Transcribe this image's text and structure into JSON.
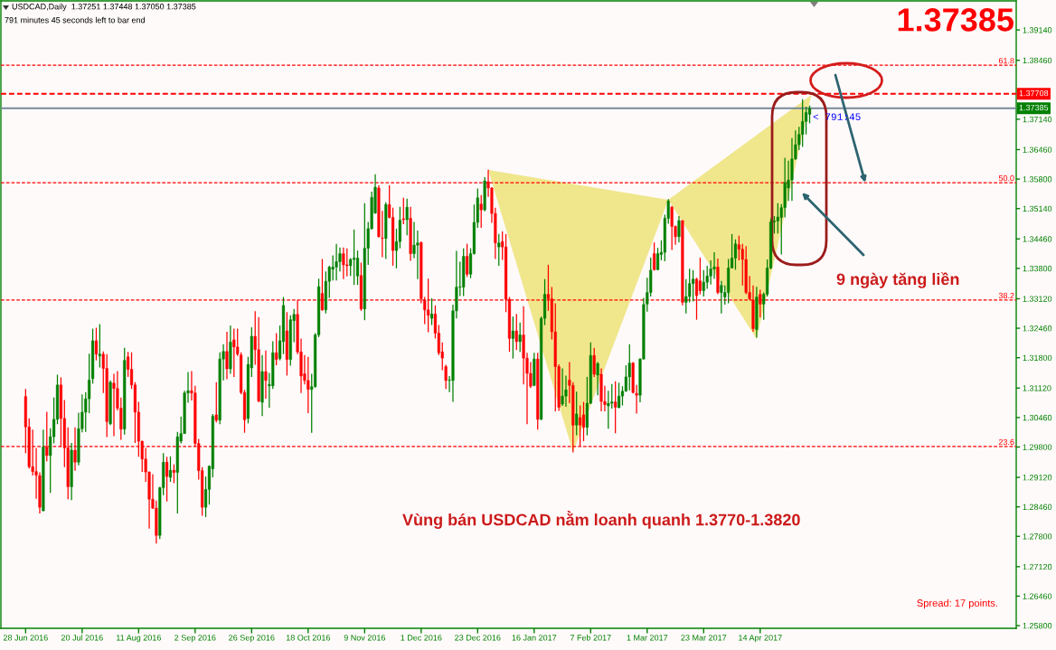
{
  "chart_data": {
    "type": "candlestick",
    "title": "USDCAD,Daily  1.37251 1.37448 1.37050 1.37385",
    "subtitle": "791 minutes 45 seconds left to bar end",
    "annotations": [
      "1.37385",
      "< 791:45",
      "9 ngày tăng liền",
      "Vùng bán USDCAD nằm loanh quanh 1.3770-1.3820",
      "Spread: 17 points.",
      {
        "text": "61.8",
        "y": 1.3835
      },
      {
        "text": "50.0",
        "y": 1.3572
      },
      {
        "text": "38.2",
        "y": 1.3309
      },
      {
        "text": "23.6",
        "y": 1.2981
      }
    ],
    "categories": [
      "28 Jun 2016",
      null,
      null,
      null,
      null,
      null,
      null,
      null,
      null,
      null,
      null,
      null,
      null,
      null,
      null,
      null,
      "20 Jul 2016",
      null,
      null,
      null,
      null,
      null,
      null,
      null,
      null,
      null,
      null,
      null,
      null,
      null,
      null,
      null,
      "11 Aug 2016",
      null,
      null,
      null,
      null,
      null,
      null,
      null,
      null,
      null,
      null,
      null,
      null,
      null,
      null,
      null,
      "2 Sep 2016",
      null,
      null,
      null,
      null,
      null,
      null,
      null,
      null,
      null,
      null,
      null,
      null,
      null,
      null,
      null,
      "26 Sep 2016",
      null,
      null,
      null,
      null,
      null,
      null,
      null,
      null,
      null,
      null,
      null,
      null,
      null,
      null,
      null,
      "18 Oct 2016",
      null,
      null,
      null,
      null,
      null,
      null,
      null,
      null,
      null,
      null,
      null,
      null,
      null,
      null,
      null,
      "9 Nov 2016",
      null,
      null,
      null,
      null,
      null,
      null,
      null,
      null,
      null,
      null,
      null,
      null,
      null,
      null,
      null,
      "1 Dec 2016",
      null,
      null,
      null,
      null,
      null,
      null,
      null,
      null,
      null,
      null,
      null,
      null,
      null,
      null,
      null,
      "23 Dec 2016",
      null,
      null,
      null,
      null,
      null,
      null,
      null,
      null,
      null,
      null,
      null,
      null,
      null,
      null,
      null,
      "16 Jan 2017",
      null,
      null,
      null,
      null,
      null,
      null,
      null,
      null,
      null,
      null,
      null,
      null,
      null,
      null,
      null,
      "7 Feb 2017",
      null,
      null,
      null,
      null,
      null,
      null,
      null,
      null,
      null,
      null,
      null,
      null,
      null,
      null,
      null,
      "1 Mar 2017",
      null,
      null,
      null,
      null,
      null,
      null,
      null,
      null,
      null,
      null,
      null,
      null,
      null,
      null,
      null,
      "23 Mar 2017",
      null,
      null,
      null,
      null,
      null,
      null,
      null,
      null,
      null,
      null,
      null,
      null,
      null,
      null,
      null,
      "14 Apr 2017",
      null,
      null,
      null,
      null,
      null,
      null,
      null,
      null,
      null,
      null,
      null,
      null,
      null,
      null,
      null,
      null,
      null,
      null,
      null,
      null,
      null,
      null,
      null,
      null,
      null,
      null,
      null,
      null,
      null,
      null,
      null,
      null,
      null,
      null,
      null,
      null,
      null,
      null,
      null,
      null,
      null,
      null,
      null,
      null,
      null,
      null,
      null,
      null,
      null,
      null,
      null,
      null,
      null,
      null,
      null,
      null,
      null,
      null,
      null,
      null,
      null,
      null,
      null,
      null,
      null,
      null,
      null,
      null,
      null,
      null,
      null,
      null
    ],
    "ohlc": [
      [
        1.3093,
        1.311,
        1.2966,
        1.3025
      ],
      [
        1.3025,
        1.3044,
        1.2932,
        1.2936
      ],
      [
        1.2936,
        1.3019,
        1.2916,
        1.2925
      ],
      [
        1.2925,
        1.2978,
        1.2864,
        1.2917
      ],
      [
        1.2916,
        1.2923,
        1.2831,
        1.2845
      ],
      [
        1.2837,
        1.3019,
        1.2836,
        1.298
      ],
      [
        1.298,
        1.3059,
        1.2948,
        1.2961
      ],
      [
        1.2961,
        1.3022,
        1.2877,
        1.3003
      ],
      [
        1.3003,
        1.3091,
        1.2988,
        1.3042
      ],
      [
        1.3042,
        1.3142,
        1.3031,
        1.3119
      ],
      [
        1.3119,
        1.3136,
        1.298,
        1.3044
      ],
      [
        1.3044,
        1.3085,
        1.2935,
        1.2978
      ],
      [
        1.2978,
        1.3024,
        1.2863,
        1.2891
      ],
      [
        1.2891,
        1.2989,
        1.2861,
        1.2973
      ],
      [
        1.2973,
        1.3024,
        1.2927,
        1.2946
      ],
      [
        1.2946,
        1.3057,
        1.2939,
        1.3021
      ],
      [
        1.3021,
        1.3098,
        1.3013,
        1.3058
      ],
      [
        1.3058,
        1.3103,
        1.3014,
        1.3088
      ],
      [
        1.3088,
        1.3189,
        1.3056,
        1.313
      ],
      [
        1.3133,
        1.3245,
        1.3122,
        1.3218
      ],
      [
        1.3218,
        1.3247,
        1.3174,
        1.3188
      ],
      [
        1.3184,
        1.3255,
        1.3158,
        1.3188
      ],
      [
        1.3188,
        1.3194,
        1.3101,
        1.3156
      ],
      [
        1.3156,
        1.3188,
        1.3002,
        1.3037
      ],
      [
        1.3032,
        1.3129,
        1.3029,
        1.3125
      ],
      [
        1.3123,
        1.3144,
        1.3004,
        1.3111
      ],
      [
        1.3111,
        1.315,
        1.3062,
        1.3067
      ],
      [
        1.3067,
        1.3091,
        1.2996,
        1.302
      ],
      [
        1.302,
        1.3202,
        1.3008,
        1.3174
      ],
      [
        1.3182,
        1.3193,
        1.3137,
        1.3154
      ],
      [
        1.3154,
        1.3192,
        1.311,
        1.3119
      ],
      [
        1.3119,
        1.3125,
        1.2989,
        1.3058
      ],
      [
        1.3058,
        1.3081,
        1.2958,
        1.2993
      ],
      [
        1.2993,
        1.2994,
        1.2924,
        1.2953
      ],
      [
        1.2953,
        1.2978,
        1.2902,
        1.2924
      ],
      [
        1.2924,
        1.2925,
        1.2797,
        1.2863
      ],
      [
        1.2863,
        1.2919,
        1.2841,
        1.2843
      ],
      [
        1.2843,
        1.286,
        1.2764,
        1.2782
      ],
      [
        1.2782,
        1.2891,
        1.2774,
        1.2889
      ],
      [
        1.2889,
        1.2966,
        1.2872,
        1.2946
      ],
      [
        1.2946,
        1.2958,
        1.2858,
        1.2914
      ],
      [
        1.2912,
        1.2959,
        1.2902,
        1.2928
      ],
      [
        1.2928,
        1.2941,
        1.2899,
        1.2923
      ],
      [
        1.2923,
        1.3014,
        1.2831,
        1.3003
      ],
      [
        1.2993,
        1.3048,
        1.2988,
        1.301
      ],
      [
        1.301,
        1.3106,
        1.301,
        1.3101
      ],
      [
        1.3101,
        1.3148,
        1.3079,
        1.3106
      ],
      [
        1.3106,
        1.315,
        1.3084,
        1.3101
      ],
      [
        1.3101,
        1.3117,
        1.2981,
        1.2988
      ],
      [
        1.2988,
        1.2998,
        1.2907,
        1.2927
      ],
      [
        1.2927,
        1.2935,
        1.2826,
        1.2845
      ],
      [
        1.2845,
        1.2914,
        1.2823,
        1.2885
      ],
      [
        1.2885,
        1.2939,
        1.2851,
        1.2937
      ],
      [
        1.2931,
        1.3054,
        1.2912,
        1.3049
      ],
      [
        1.3052,
        1.3125,
        1.3035,
        1.304
      ],
      [
        1.304,
        1.3192,
        1.3031,
        1.3177
      ],
      [
        1.3177,
        1.321,
        1.3129,
        1.3194
      ],
      [
        1.3194,
        1.3238,
        1.3132,
        1.3155
      ],
      [
        1.3155,
        1.3252,
        1.3144,
        1.3215
      ],
      [
        1.322,
        1.3245,
        1.3137,
        1.3204
      ],
      [
        1.3204,
        1.3245,
        1.3184,
        1.3188
      ],
      [
        1.3186,
        1.3192,
        1.3098,
        1.3102
      ],
      [
        1.3102,
        1.3108,
        1.3012,
        1.3041
      ],
      [
        1.3044,
        1.3182,
        1.3033,
        1.3165
      ],
      [
        1.3157,
        1.3248,
        1.3137,
        1.3228
      ],
      [
        1.3228,
        1.3284,
        1.3164,
        1.3198
      ],
      [
        1.3198,
        1.3271,
        1.308,
        1.3083
      ],
      [
        1.308,
        1.3186,
        1.3049,
        1.3149
      ],
      [
        1.3149,
        1.3196,
        1.3088,
        1.3129
      ],
      [
        1.3117,
        1.3146,
        1.3068,
        1.312
      ],
      [
        1.3117,
        1.3217,
        1.311,
        1.3191
      ],
      [
        1.3191,
        1.3235,
        1.3163,
        1.3176
      ],
      [
        1.3178,
        1.3252,
        1.3174,
        1.3218
      ],
      [
        1.3216,
        1.3316,
        1.3188,
        1.3297
      ],
      [
        1.324,
        1.3282,
        1.314,
        1.3176
      ],
      [
        1.3176,
        1.3275,
        1.3162,
        1.3265
      ],
      [
        1.3263,
        1.3289,
        1.3215,
        1.3277
      ],
      [
        1.3277,
        1.3309,
        1.3188,
        1.3193
      ],
      [
        1.3193,
        1.3223,
        1.3101,
        1.3139
      ],
      [
        1.3144,
        1.3186,
        1.312,
        1.3129
      ],
      [
        1.3129,
        1.3182,
        1.3056,
        1.3109
      ],
      [
        1.3109,
        1.3144,
        1.3012,
        1.3115
      ],
      [
        1.3115,
        1.3235,
        1.3113,
        1.3231
      ],
      [
        1.3231,
        1.3357,
        1.3226,
        1.3339
      ],
      [
        1.3324,
        1.3401,
        1.3285,
        1.3287
      ],
      [
        1.3287,
        1.3373,
        1.3279,
        1.3351
      ],
      [
        1.3351,
        1.3386,
        1.3314,
        1.3383
      ],
      [
        1.3378,
        1.3409,
        1.3353,
        1.3383
      ],
      [
        1.3383,
        1.3435,
        1.3353,
        1.3395
      ],
      [
        1.3395,
        1.3427,
        1.3373,
        1.3413
      ],
      [
        1.3413,
        1.3427,
        1.3356,
        1.3388
      ],
      [
        1.3388,
        1.3425,
        1.3362,
        1.3386
      ],
      [
        1.3386,
        1.3403,
        1.3363,
        1.34
      ],
      [
        1.34,
        1.3467,
        1.3343,
        1.3403
      ],
      [
        1.3363,
        1.342,
        1.3343,
        1.3403
      ],
      [
        1.3364,
        1.3393,
        1.3285,
        1.3289
      ],
      [
        1.3289,
        1.3526,
        1.3264,
        1.3425
      ],
      [
        1.3425,
        1.3484,
        1.3388,
        1.3469
      ],
      [
        1.3469,
        1.3552,
        1.3467,
        1.3539
      ],
      [
        1.3504,
        1.3591,
        1.3502,
        1.3562
      ],
      [
        1.356,
        1.3566,
        1.3449,
        1.3451
      ],
      [
        1.3448,
        1.3509,
        1.3405,
        1.3447
      ],
      [
        1.3447,
        1.3528,
        1.3401,
        1.3523
      ],
      [
        1.3523,
        1.3566,
        1.3492,
        1.3494
      ],
      [
        1.3494,
        1.3516,
        1.3386,
        1.342
      ],
      [
        1.342,
        1.3469,
        1.338,
        1.344
      ],
      [
        1.344,
        1.3518,
        1.3425,
        1.3488
      ],
      [
        1.3491,
        1.3538,
        1.3479,
        1.3489
      ],
      [
        1.3489,
        1.3536,
        1.3454,
        1.3517
      ],
      [
        1.3492,
        1.3518,
        1.3397,
        1.3413
      ],
      [
        1.3413,
        1.3484,
        1.3403,
        1.3432
      ],
      [
        1.3432,
        1.3465,
        1.3356,
        1.3437
      ],
      [
        1.3438,
        1.344,
        1.3302,
        1.3312
      ],
      [
        1.3309,
        1.3316,
        1.3255,
        1.3287
      ],
      [
        1.3287,
        1.3357,
        1.3237,
        1.3275
      ],
      [
        1.3268,
        1.3313,
        1.3253,
        1.3278
      ],
      [
        1.3278,
        1.3297,
        1.3223,
        1.3235
      ],
      [
        1.3235,
        1.3253,
        1.3186,
        1.3191
      ],
      [
        1.3193,
        1.3214,
        1.3152,
        1.3179
      ],
      [
        1.316,
        1.3164,
        1.311,
        1.3129
      ],
      [
        1.3129,
        1.3139,
        1.3103,
        1.313
      ],
      [
        1.3129,
        1.3299,
        1.3081,
        1.3285
      ],
      [
        1.3285,
        1.3419,
        1.3268,
        1.3338
      ],
      [
        1.3338,
        1.3395,
        1.3318,
        1.3339
      ],
      [
        1.3338,
        1.3425,
        1.3318,
        1.3407
      ],
      [
        1.3407,
        1.3435,
        1.3361,
        1.3367
      ],
      [
        1.3367,
        1.3425,
        1.3358,
        1.3413
      ],
      [
        1.3413,
        1.3523,
        1.3411,
        1.3483
      ],
      [
        1.3483,
        1.3559,
        1.3471,
        1.3538
      ],
      [
        1.3524,
        1.3544,
        1.3471,
        1.3511
      ],
      [
        1.3511,
        1.3584,
        1.3508,
        1.3576
      ],
      [
        1.3574,
        1.3601,
        1.354,
        1.356
      ],
      [
        1.356,
        1.3562,
        1.3482,
        1.3503
      ],
      [
        1.3503,
        1.3516,
        1.3401,
        1.3437
      ],
      [
        1.3428,
        1.3457,
        1.3386,
        1.3437
      ],
      [
        1.344,
        1.3463,
        1.3399,
        1.3428
      ],
      [
        1.3428,
        1.3457,
        1.3282,
        1.3311
      ],
      [
        1.3311,
        1.3316,
        1.3193,
        1.3223
      ],
      [
        1.3223,
        1.3272,
        1.3178,
        1.324
      ],
      [
        1.324,
        1.3278,
        1.3197,
        1.3216
      ],
      [
        1.3216,
        1.3259,
        1.3193,
        1.3231
      ],
      [
        1.3231,
        1.3295,
        1.312,
        1.3179
      ],
      [
        1.3179,
        1.3191,
        1.3031,
        1.3145
      ],
      [
        1.3145,
        1.317,
        1.3112,
        1.3116
      ],
      [
        1.3118,
        1.3191,
        1.3116,
        1.3177
      ],
      [
        1.3177,
        1.3191,
        1.3019,
        1.3042
      ],
      [
        1.3042,
        1.3272,
        1.304,
        1.3268
      ],
      [
        1.3268,
        1.3356,
        1.3253,
        1.3322
      ],
      [
        1.3322,
        1.3388,
        1.3285,
        1.3312
      ],
      [
        1.3312,
        1.3338,
        1.3221,
        1.3238
      ],
      [
        1.3238,
        1.3302,
        1.306,
        1.316
      ],
      [
        1.316,
        1.3165,
        1.3061,
        1.3069
      ],
      [
        1.3076,
        1.3156,
        1.3072,
        1.3094
      ],
      [
        1.3094,
        1.314,
        1.307,
        1.3108
      ],
      [
        1.313,
        1.317,
        1.3078,
        1.3118
      ],
      [
        1.3118,
        1.3125,
        1.2968,
        1.3029
      ],
      [
        1.3029,
        1.3104,
        1.3006,
        1.3054
      ],
      [
        1.3046,
        1.3073,
        1.2982,
        1.3029
      ],
      [
        1.3052,
        1.3081,
        1.2993,
        1.3024
      ],
      [
        1.3024,
        1.3137,
        1.3006,
        1.3078
      ],
      [
        1.3078,
        1.3214,
        1.3076,
        1.3185
      ],
      [
        1.3185,
        1.3202,
        1.3137,
        1.3143
      ],
      [
        1.3141,
        1.317,
        1.3096,
        1.3167
      ],
      [
        1.3143,
        1.3156,
        1.306,
        1.3082
      ],
      [
        1.3082,
        1.3117,
        1.306,
        1.3075
      ],
      [
        1.3072,
        1.3106,
        1.3021,
        1.3078
      ],
      [
        1.3078,
        1.3121,
        1.3066,
        1.3081
      ],
      [
        1.3081,
        1.3127,
        1.3011,
        1.3069
      ],
      [
        1.3068,
        1.3124,
        1.3067,
        1.3094
      ],
      [
        1.3094,
        1.3116,
        1.3073,
        1.3105
      ],
      [
        1.3105,
        1.3163,
        1.3104,
        1.3137
      ],
      [
        1.3137,
        1.321,
        1.3107,
        1.3168
      ],
      [
        1.3168,
        1.317,
        1.31,
        1.3102
      ],
      [
        1.31,
        1.3119,
        1.3055,
        1.3096
      ],
      [
        1.3096,
        1.3179,
        1.308,
        1.3177
      ],
      [
        1.3177,
        1.3314,
        1.3176,
        1.3299
      ],
      [
        1.33,
        1.3359,
        1.3283,
        1.3326
      ],
      [
        1.3326,
        1.3404,
        1.3317,
        1.3376
      ],
      [
        1.3413,
        1.3438,
        1.3375,
        1.3377
      ],
      [
        1.3377,
        1.3426,
        1.3376,
        1.3413
      ],
      [
        1.3411,
        1.3443,
        1.3398,
        1.3416
      ],
      [
        1.3416,
        1.35,
        1.3396,
        1.3492
      ],
      [
        1.3492,
        1.3535,
        1.348,
        1.3531
      ],
      [
        1.3517,
        1.352,
        1.3421,
        1.3474
      ],
      [
        1.3474,
        1.3476,
        1.3433,
        1.3451
      ],
      [
        1.3451,
        1.3497,
        1.3438,
        1.3487
      ],
      [
        1.3487,
        1.3488,
        1.3297,
        1.3304
      ],
      [
        1.3304,
        1.3356,
        1.3279,
        1.3317
      ],
      [
        1.3317,
        1.3379,
        1.3304,
        1.3346
      ],
      [
        1.3346,
        1.3376,
        1.3306,
        1.3356
      ],
      [
        1.3356,
        1.3359,
        1.3265,
        1.3319
      ],
      [
        1.3352,
        1.3404,
        1.3322,
        1.333
      ],
      [
        1.333,
        1.3376,
        1.3317,
        1.3349
      ],
      [
        1.3349,
        1.3386,
        1.3334,
        1.3363
      ],
      [
        1.3363,
        1.3398,
        1.3344,
        1.3379
      ],
      [
        1.3379,
        1.3416,
        1.3357,
        1.3383
      ],
      [
        1.3383,
        1.3402,
        1.3322,
        1.3326
      ],
      [
        1.3326,
        1.3352,
        1.3279,
        1.3342
      ],
      [
        1.3316,
        1.3342,
        1.3299,
        1.3326
      ],
      [
        1.3326,
        1.3401,
        1.3302,
        1.3381
      ],
      [
        1.3381,
        1.3457,
        1.338,
        1.3403
      ],
      [
        1.3403,
        1.3445,
        1.3377,
        1.3435
      ],
      [
        1.3433,
        1.3453,
        1.3398,
        1.3423
      ],
      [
        1.3423,
        1.3435,
        1.3342,
        1.34
      ],
      [
        1.34,
        1.343,
        1.3322,
        1.3326
      ],
      [
        1.3326,
        1.3363,
        1.3309,
        1.3312
      ],
      [
        1.3309,
        1.3342,
        1.3238,
        1.3245
      ],
      [
        1.3243,
        1.3339,
        1.3225,
        1.3316
      ],
      [
        1.3322,
        1.3332,
        1.327,
        1.33
      ],
      [
        1.33,
        1.3326,
        1.3265,
        1.3322
      ],
      [
        1.3322,
        1.34,
        1.3317,
        1.3381
      ],
      [
        1.3381,
        1.3492,
        1.3378,
        1.3484
      ],
      [
        1.3484,
        1.3497,
        1.3458,
        1.3486
      ],
      [
        1.3486,
        1.3526,
        1.3458,
        1.3495
      ],
      [
        1.3494,
        1.3524,
        1.3411,
        1.3516
      ],
      [
        1.3516,
        1.3628,
        1.3494,
        1.3572
      ],
      [
        1.356,
        1.3621,
        1.3531,
        1.3578
      ],
      [
        1.3578,
        1.3672,
        1.3531,
        1.3625
      ],
      [
        1.3625,
        1.3689,
        1.3623,
        1.3657
      ],
      [
        1.3657,
        1.3697,
        1.3645,
        1.368
      ],
      [
        1.368,
        1.3759,
        1.3652,
        1.3709
      ],
      [
        1.3709,
        1.3742,
        1.368,
        1.3729
      ],
      [
        1.37251,
        1.37448,
        1.3705,
        1.37385
      ],
      null,
      null,
      null,
      null,
      null,
      null,
      null,
      null,
      null,
      null,
      null,
      null,
      null,
      null,
      null,
      null,
      null,
      null,
      null,
      null,
      null,
      null,
      null,
      null,
      null,
      null,
      null,
      null,
      null,
      null,
      null,
      null,
      null,
      null,
      null,
      null,
      null,
      null,
      null,
      null,
      null,
      null,
      null,
      null,
      null,
      null,
      null,
      null,
      null,
      null,
      null,
      null,
      null,
      null,
      null,
      null,
      null,
      null
    ],
    "colors": [
      "#ff0000",
      "#ff0000",
      "#ff0000",
      "#ff0000",
      "#ff0000",
      "#008000",
      "#ff0000",
      "#008000",
      "#008000",
      "#008000",
      "#ff0000",
      "#ff0000",
      "#ff0000",
      "#008000",
      "#ff0000",
      "#008000",
      "#008000",
      "#008000",
      "#008000",
      "#008000",
      "#ff0000",
      "#008000",
      "#ff0000",
      "#ff0000",
      "#008000",
      "#ff0000",
      "#ff0000",
      "#ff0000",
      "#008000",
      "#ff0000",
      "#ff0000",
      "#ff0000",
      "#ff0000",
      "#ff0000",
      "#ff0000",
      "#ff0000",
      "#ff0000",
      "#ff0000",
      "#008000",
      "#008000",
      "#ff0000",
      "#008000",
      "#ff0000",
      "#008000",
      "#008000",
      "#008000",
      "#008000",
      "#ff0000",
      "#ff0000",
      "#ff0000",
      "#ff0000",
      "#008000",
      "#008000",
      "#008000",
      "#ff0000",
      "#008000",
      "#008000",
      "#ff0000",
      "#008000",
      "#ff0000",
      "#ff0000",
      "#ff0000",
      "#ff0000",
      "#008000",
      "#008000",
      "#ff0000",
      "#ff0000",
      "#008000",
      "#ff0000",
      "#008000",
      "#008000",
      "#ff0000",
      "#008000",
      "#008000",
      "#ff0000",
      "#008000",
      "#008000",
      "#ff0000",
      "#ff0000",
      "#ff0000",
      "#ff0000",
      "#008000",
      "#008000",
      "#008000",
      "#ff0000",
      "#008000",
      "#008000",
      "#008000",
      "#008000",
      "#008000",
      "#ff0000",
      "#ff0000",
      "#008000",
      "#008000",
      "#008000",
      "#ff0000",
      "#008000",
      "#008000",
      "#008000",
      "#008000",
      "#ff0000",
      "#ff0000",
      "#008000",
      "#ff0000",
      "#ff0000",
      "#008000",
      "#008000",
      "#ff0000",
      "#008000",
      "#ff0000",
      "#008000",
      "#008000",
      "#ff0000",
      "#ff0000",
      "#ff0000",
      "#008000",
      "#ff0000",
      "#ff0000",
      "#ff0000",
      "#ff0000",
      "#008000",
      "#008000",
      "#008000",
      "#008000",
      "#008000",
      "#ff0000",
      "#008000",
      "#008000",
      "#008000",
      "#ff0000",
      "#008000",
      "#ff0000",
      "#ff0000",
      "#ff0000",
      "#008000",
      "#ff0000",
      "#ff0000",
      "#ff0000",
      "#008000",
      "#ff0000",
      "#008000",
      "#ff0000",
      "#ff0000",
      "#ff0000",
      "#008000",
      "#ff0000",
      "#008000",
      "#008000",
      "#ff0000",
      "#ff0000",
      "#ff0000",
      "#ff0000",
      "#008000",
      "#008000",
      "#ff0000",
      "#ff0000",
      "#008000",
      "#ff0000",
      "#ff0000",
      "#008000",
      "#008000",
      "#ff0000",
      "#008000",
      "#ff0000",
      "#ff0000",
      "#008000",
      "#008000",
      "#ff0000",
      "#008000",
      "#008000",
      "#008000",
      "#008000",
      "#ff0000",
      "#ff0000",
      "#008000",
      "#008000",
      "#008000",
      "#008000",
      "#ff0000",
      "#008000",
      "#008000",
      "#008000",
      "#008000",
      "#ff0000",
      "#ff0000",
      "#008000",
      "#ff0000",
      "#008000",
      "#008000",
      "#008000",
      "#ff0000",
      "#ff0000",
      "#008000",
      "#008000",
      "#008000",
      "#008000",
      "#ff0000",
      "#008000",
      "#008000",
      "#008000",
      "#008000",
      "#008000",
      "#ff0000",
      "#ff0000",
      "#ff0000",
      "#ff0000",
      "#ff0000",
      "#008000",
      "#ff0000",
      "#008000",
      "#008000",
      "#008000",
      "#008000",
      "#008000",
      "#008000",
      "#008000",
      "#008000",
      "#008000",
      "#008000",
      "#008000",
      "#008000",
      "#008000",
      "#008000",
      null,
      null,
      null,
      null,
      null,
      null,
      null,
      null,
      null,
      null,
      null,
      null,
      null,
      null,
      null,
      null,
      null,
      null,
      null,
      null,
      null,
      null,
      null,
      null,
      null,
      null,
      null,
      null,
      null,
      null,
      null,
      null,
      null,
      null,
      null,
      null,
      null,
      null,
      null,
      null,
      null,
      null,
      null,
      null,
      null,
      null,
      null,
      null,
      null,
      null,
      null,
      null,
      null,
      null,
      null,
      null,
      null,
      null
    ],
    "ylim": [
      1.2574,
      1.3979
    ],
    "yticks": [
      {
        "value": 1.3914,
        "label": "1.39140"
      },
      {
        "value": 1.3846,
        "label": "1.38460"
      },
      {
        "value": 1.3714,
        "label": "1.37140"
      },
      {
        "value": 1.3646,
        "label": "1.36460"
      },
      {
        "value": 1.358,
        "label": "1.35800"
      },
      {
        "value": 1.3514,
        "label": "1.35140"
      },
      {
        "value": 1.3446,
        "label": "1.34460"
      },
      {
        "value": 1.338,
        "label": "1.33800"
      },
      {
        "value": 1.3312,
        "label": "1.33120"
      },
      {
        "value": 1.3246,
        "label": "1.32460"
      },
      {
        "value": 1.318,
        "label": "1.31800"
      },
      {
        "value": 1.3112,
        "label": "1.31120"
      },
      {
        "value": 1.3046,
        "label": "1.30460"
      },
      {
        "value": 1.298,
        "label": "1.29800"
      },
      {
        "value": 1.2912,
        "label": "1.29120"
      },
      {
        "value": 1.2846,
        "label": "1.28460"
      },
      {
        "value": 1.278,
        "label": "1.27800"
      },
      {
        "value": 1.2712,
        "label": "1.27120"
      },
      {
        "value": 1.2646,
        "label": "1.26460"
      },
      {
        "value": 1.258,
        "label": "1.25800"
      }
    ],
    "ref_lines": [
      {
        "axis": "y",
        "value": 1.3835,
        "color": "#ff0000",
        "line_style": "dashed"
      },
      {
        "axis": "y",
        "value": 1.3572,
        "color": "#ff0000",
        "line_style": "dashed"
      },
      {
        "axis": "y",
        "value": 1.3309,
        "color": "#ff0000",
        "line_style": "dashed"
      },
      {
        "axis": "y",
        "value": 1.2981,
        "color": "#ff0000",
        "line_style": "dashed"
      },
      {
        "axis": "y",
        "value": 1.37708,
        "label": "1.37708",
        "color": "#ff0000",
        "line_style": "dashed"
      },
      {
        "axis": "y",
        "value": 1.37385,
        "label": "1.37385",
        "color": "#778899",
        "line_style": "solid"
      }
    ]
  }
}
